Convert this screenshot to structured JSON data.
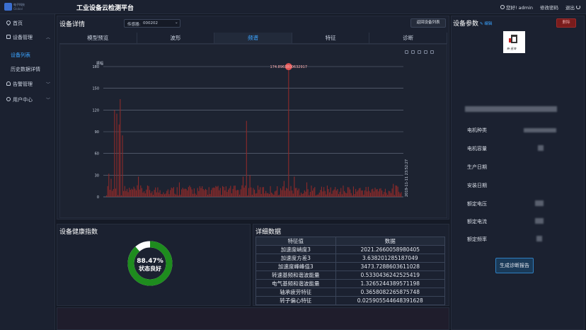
{
  "app": {
    "logo_text": "电子科技",
    "logo_subtext": "Global",
    "title": "工业设备云检测平台",
    "greeting": "您好! admin",
    "change_password": "修改密码",
    "logout": "退出"
  },
  "sidebar": {
    "items": [
      {
        "label": "首页",
        "icon": "pin-icon"
      },
      {
        "label": "设备管理",
        "icon": "folder-icon",
        "expanded": true
      },
      {
        "label": "设备列表",
        "active": true
      },
      {
        "label": "历史数据详情"
      },
      {
        "label": "告警管理",
        "icon": "bell-icon"
      },
      {
        "label": "用户中心",
        "icon": "user-icon"
      }
    ]
  },
  "device_detail": {
    "title": "设备详情",
    "select_prefix": "传感器:",
    "select_value": "000202",
    "back_button": "返回设备列表",
    "tabs": [
      "模型预览",
      "波形",
      "频谱",
      "特征",
      "诊断"
    ],
    "active_tab": 2
  },
  "chart_data": {
    "type": "bar",
    "ylabel": "振幅",
    "ylim": [
      0,
      180
    ],
    "yticks": [
      0,
      30,
      60,
      90,
      120,
      150,
      180
    ],
    "grid": true,
    "bar_color": "#8b2a2a",
    "marker_color": "#e05555",
    "marker_label": "174.8963800632917",
    "timestamp": "2019-11-11 23:52:27",
    "bar_count": 260,
    "peaks": [
      {
        "index": 7,
        "value": 120
      },
      {
        "index": 9,
        "value": 115
      },
      {
        "index": 11,
        "value": 100
      },
      {
        "index": 12,
        "value": 135
      },
      {
        "index": 14,
        "value": 85
      },
      {
        "index": 123,
        "value": 105
      },
      {
        "index": 160,
        "value": 175
      }
    ],
    "medium": [
      {
        "index": 2,
        "value": 32
      },
      {
        "index": 4,
        "value": 25
      },
      {
        "index": 28,
        "value": 28
      },
      {
        "index": 64,
        "value": 20
      },
      {
        "index": 120,
        "value": 28
      },
      {
        "index": 126,
        "value": 30
      },
      {
        "index": 156,
        "value": 22
      },
      {
        "index": 165,
        "value": 28
      },
      {
        "index": 176,
        "value": 20
      },
      {
        "index": 252,
        "value": 18
      }
    ],
    "noise_max": 14
  },
  "health": {
    "title": "设备健康指数",
    "percent": 0.8847,
    "value_text": "88.47%",
    "status_text": "状态良好",
    "ring_color": "#1e8c1e",
    "track_color": "#ffffff"
  },
  "details": {
    "title": "详细数据",
    "headers": [
      "特征值",
      "数据"
    ],
    "rows": [
      [
        "加速度峭度3",
        "2021.2660058980405"
      ],
      [
        "加速度方差3",
        "3.638201285187049"
      ],
      [
        "加速度峰峰值3",
        "3473.7288603611028"
      ],
      [
        "转速基频和谐波能量",
        "0.5330436242525419"
      ],
      [
        "电气基频和谐波能量",
        "1.3265244389571198"
      ],
      [
        "轴承疲劳特征",
        "0.3658082265875748"
      ],
      [
        "转子偏心特征",
        "0.025905544648391628"
      ]
    ]
  },
  "params": {
    "title": "设备参数",
    "edit": "编辑",
    "delete": "删除",
    "qr_caption": "新·星海",
    "labels": [
      "电机种类",
      "电机容量",
      "生产日期",
      "安装日期",
      "额定电压",
      "额定电流",
      "额定频率"
    ],
    "report_button": "生成诊断报告"
  }
}
